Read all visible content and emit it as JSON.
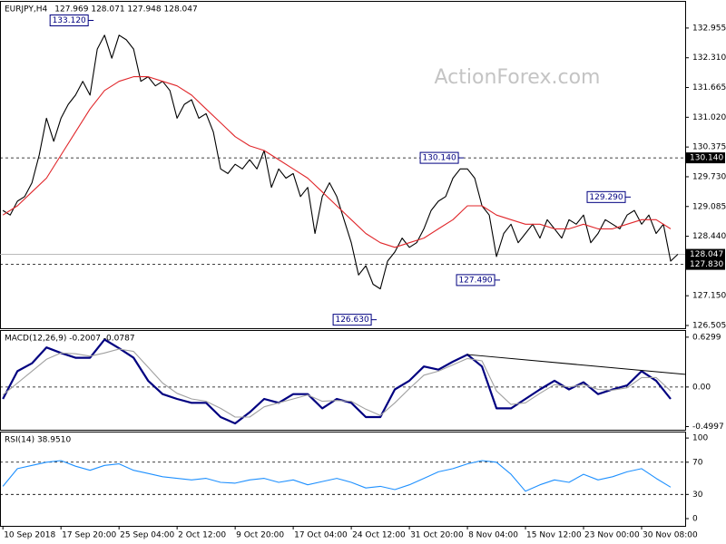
{
  "watermark": "ActionForex.com",
  "chart_data": [
    {
      "type": "line",
      "title": "EURJPY,H4",
      "subtitle": "127.969 128.071 127.948 128.047",
      "xlim": [
        -0.4,
        94
      ],
      "ylim": [
        126.446,
        133.543
      ],
      "yticks": [
        {
          "value": 132.955,
          "label": "132.955"
        },
        {
          "value": 132.31,
          "label": "132.310"
        },
        {
          "value": 131.665,
          "label": "131.665"
        },
        {
          "value": 131.02,
          "label": "131.020"
        },
        {
          "value": 130.375,
          "label": "130.375"
        },
        {
          "value": 129.73,
          "label": "129.730"
        },
        {
          "value": 129.085,
          "label": "129.085"
        },
        {
          "value": 128.44,
          "label": "128.440"
        },
        {
          "value": 127.15,
          "label": "127.150"
        },
        {
          "value": 126.505,
          "label": "126.505"
        }
      ],
      "hlines": [
        {
          "value": 130.14,
          "label": "130.140"
        },
        {
          "value": 127.83,
          "label": "127.830"
        }
      ],
      "last_price": {
        "value": 128.047,
        "label": "128.047"
      },
      "series": [
        {
          "color": "#000000",
          "x": [
            0,
            1,
            2,
            3,
            4,
            5,
            6,
            7,
            8,
            9,
            10,
            11,
            12,
            13,
            14,
            15,
            16,
            17,
            18,
            19,
            20,
            21,
            22,
            23,
            24,
            25,
            26,
            27,
            28,
            29,
            30,
            31,
            32,
            33,
            34,
            35,
            36,
            37,
            38,
            39,
            40,
            41,
            42,
            43,
            44,
            45,
            46,
            47,
            48,
            49,
            50,
            51,
            52,
            53,
            54,
            55,
            56,
            57,
            58,
            59,
            60,
            61,
            62,
            63,
            64,
            65,
            66,
            67,
            68,
            69,
            70,
            71,
            72,
            73,
            74,
            75,
            76,
            77,
            78,
            79,
            80,
            81,
            82,
            83,
            84,
            85,
            86,
            87,
            88,
            89,
            90,
            91,
            92,
            93
          ],
          "values": [
            129.0,
            128.9,
            129.2,
            129.3,
            129.6,
            130.2,
            131.0,
            130.5,
            131.0,
            131.3,
            131.5,
            131.8,
            131.5,
            132.5,
            132.8,
            132.3,
            132.8,
            132.7,
            132.5,
            131.8,
            131.9,
            131.7,
            131.8,
            131.6,
            131.0,
            131.3,
            131.4,
            131.0,
            131.1,
            130.7,
            129.9,
            129.8,
            130.0,
            129.9,
            130.1,
            129.9,
            130.3,
            129.5,
            129.9,
            129.7,
            129.8,
            129.3,
            129.5,
            128.5,
            129.3,
            129.6,
            129.3,
            128.8,
            128.3,
            127.6,
            127.8,
            127.4,
            127.3,
            127.9,
            128.1,
            128.4,
            128.2,
            128.3,
            128.6,
            129.0,
            129.2,
            129.3,
            129.7,
            129.9,
            129.9,
            129.7,
            129.1,
            128.9,
            128.0,
            128.5,
            128.7,
            128.3,
            128.5,
            128.7,
            128.4,
            128.8,
            128.6,
            128.4,
            128.8,
            128.7,
            128.9,
            128.3,
            128.5,
            128.8,
            128.7,
            128.6,
            128.9,
            129.0,
            128.7,
            128.9,
            128.5,
            128.7,
            127.9,
            128.05
          ]
        },
        {
          "color": "#e0262a",
          "x": [
            0,
            2,
            4,
            6,
            8,
            10,
            12,
            14,
            16,
            18,
            20,
            22,
            24,
            26,
            28,
            30,
            32,
            34,
            36,
            38,
            40,
            42,
            44,
            46,
            48,
            50,
            52,
            54,
            56,
            58,
            60,
            62,
            64,
            66,
            68,
            70,
            72,
            74,
            76,
            78,
            80,
            82,
            84,
            86,
            88,
            90,
            92
          ],
          "values": [
            128.9,
            129.1,
            129.4,
            129.7,
            130.2,
            130.7,
            131.2,
            131.6,
            131.8,
            131.9,
            131.9,
            131.8,
            131.7,
            131.5,
            131.2,
            130.9,
            130.6,
            130.4,
            130.3,
            130.1,
            129.9,
            129.7,
            129.4,
            129.1,
            128.8,
            128.5,
            128.3,
            128.2,
            128.3,
            128.4,
            128.6,
            128.8,
            129.1,
            129.1,
            128.9,
            128.8,
            128.7,
            128.7,
            128.6,
            128.6,
            128.7,
            128.6,
            128.6,
            128.7,
            128.8,
            128.8,
            128.6
          ]
        }
      ],
      "annotations": [
        {
          "x": 12,
          "value": 133.12,
          "label": "133.120"
        },
        {
          "x": 63,
          "value": 130.14,
          "label": "130.140"
        },
        {
          "x": 68,
          "value": 127.49,
          "label": "127.490"
        },
        {
          "x": 51,
          "value": 126.63,
          "label": "126.630"
        },
        {
          "x": 86,
          "value": 129.29,
          "label": "129.290"
        }
      ]
    },
    {
      "type": "line",
      "title": "MACD(12,26,9) -0.2007 -0.0787",
      "xlim": [
        -0.4,
        94
      ],
      "ylim": [
        -0.54,
        0.72
      ],
      "yticks": [
        {
          "value": 0.6299,
          "label": "0.6299"
        },
        {
          "value": 0,
          "label": "0.00"
        },
        {
          "value": -0.4997,
          "label": "-0.4997"
        }
      ],
      "hlines": [
        {
          "value": 0
        }
      ],
      "series": [
        {
          "color": "#000080",
          "x": [
            0,
            2,
            4,
            6,
            8,
            10,
            12,
            14,
            16,
            18,
            20,
            22,
            24,
            26,
            28,
            30,
            32,
            34,
            36,
            38,
            40,
            42,
            44,
            46,
            48,
            50,
            52,
            54,
            56,
            58,
            60,
            62,
            64,
            66,
            68,
            70,
            72,
            74,
            76,
            78,
            80,
            82,
            84,
            86,
            88,
            90,
            92
          ],
          "values": [
            -0.15,
            0.2,
            0.3,
            0.5,
            0.43,
            0.37,
            0.37,
            0.6,
            0.49,
            0.37,
            0.08,
            -0.09,
            -0.15,
            -0.2,
            -0.2,
            -0.38,
            -0.46,
            -0.32,
            -0.15,
            -0.2,
            -0.09,
            -0.09,
            -0.27,
            -0.15,
            -0.2,
            -0.38,
            -0.38,
            -0.03,
            0.08,
            0.26,
            0.22,
            0.32,
            0.41,
            0.26,
            -0.27,
            -0.27,
            -0.15,
            -0.03,
            0.08,
            -0.03,
            0.06,
            -0.09,
            -0.03,
            0.02,
            0.2,
            0.08,
            -0.15
          ]
        },
        {
          "color": "#a0a0a0",
          "x": [
            0,
            2,
            4,
            6,
            8,
            10,
            12,
            14,
            16,
            18,
            20,
            22,
            24,
            26,
            28,
            30,
            32,
            34,
            36,
            38,
            40,
            42,
            44,
            46,
            48,
            50,
            52,
            54,
            56,
            58,
            60,
            62,
            64,
            66,
            68,
            70,
            72,
            74,
            76,
            78,
            80,
            82,
            84,
            86,
            88,
            90,
            92
          ],
          "values": [
            -0.1,
            0.05,
            0.2,
            0.35,
            0.43,
            0.42,
            0.39,
            0.43,
            0.48,
            0.45,
            0.25,
            0.05,
            -0.08,
            -0.15,
            -0.18,
            -0.27,
            -0.38,
            -0.38,
            -0.25,
            -0.2,
            -0.15,
            -0.1,
            -0.18,
            -0.17,
            -0.18,
            -0.28,
            -0.36,
            -0.2,
            -0.02,
            0.15,
            0.2,
            0.28,
            0.36,
            0.33,
            -0.05,
            -0.22,
            -0.2,
            -0.08,
            0.03,
            0.0,
            0.03,
            -0.03,
            -0.04,
            -0.01,
            0.12,
            0.12,
            -0.05
          ]
        }
      ],
      "trendline": {
        "x": [
          64,
          94
        ],
        "values": [
          0.41,
          0.16
        ]
      }
    },
    {
      "type": "line",
      "title": "RSI(14) 38.9510",
      "xlim": [
        -0.4,
        94
      ],
      "ylim": [
        -9,
        108
      ],
      "yticks": [
        100,
        70,
        30,
        0
      ],
      "hlines": [
        {
          "value": 70
        },
        {
          "value": 30
        }
      ],
      "series": [
        {
          "color": "#1e90ff",
          "x": [
            0,
            2,
            4,
            6,
            8,
            10,
            12,
            14,
            16,
            18,
            20,
            22,
            24,
            26,
            28,
            30,
            32,
            34,
            36,
            38,
            40,
            42,
            44,
            46,
            48,
            50,
            52,
            54,
            56,
            58,
            60,
            62,
            64,
            66,
            68,
            70,
            72,
            74,
            76,
            78,
            80,
            82,
            84,
            86,
            88,
            90,
            92
          ],
          "values": [
            40,
            62,
            66,
            70,
            72,
            65,
            60,
            66,
            68,
            60,
            56,
            52,
            50,
            48,
            50,
            45,
            44,
            48,
            50,
            45,
            48,
            42,
            46,
            50,
            45,
            38,
            40,
            36,
            42,
            50,
            58,
            62,
            68,
            72,
            70,
            55,
            34,
            42,
            48,
            45,
            55,
            48,
            52,
            58,
            62,
            50,
            39
          ]
        }
      ],
      "xticks": [
        {
          "value": 0,
          "label": "10 Sep 2018"
        },
        {
          "value": 8,
          "label": "17 Sep 20:00"
        },
        {
          "value": 16,
          "label": "25 Sep 04:00"
        },
        {
          "value": 24,
          "label": "2 Oct 12:00"
        },
        {
          "value": 32,
          "label": "9 Oct 20:00"
        },
        {
          "value": 40,
          "label": "17 Oct 04:00"
        },
        {
          "value": 48,
          "label": "24 Oct 12:00"
        },
        {
          "value": 56,
          "label": "31 Oct 20:00"
        },
        {
          "value": 64,
          "label": "8 Nov 04:00"
        },
        {
          "value": 72,
          "label": "15 Nov 12:00"
        },
        {
          "value": 80,
          "label": "23 Nov 00:00"
        },
        {
          "value": 88,
          "label": "30 Nov 08:00"
        }
      ]
    }
  ]
}
